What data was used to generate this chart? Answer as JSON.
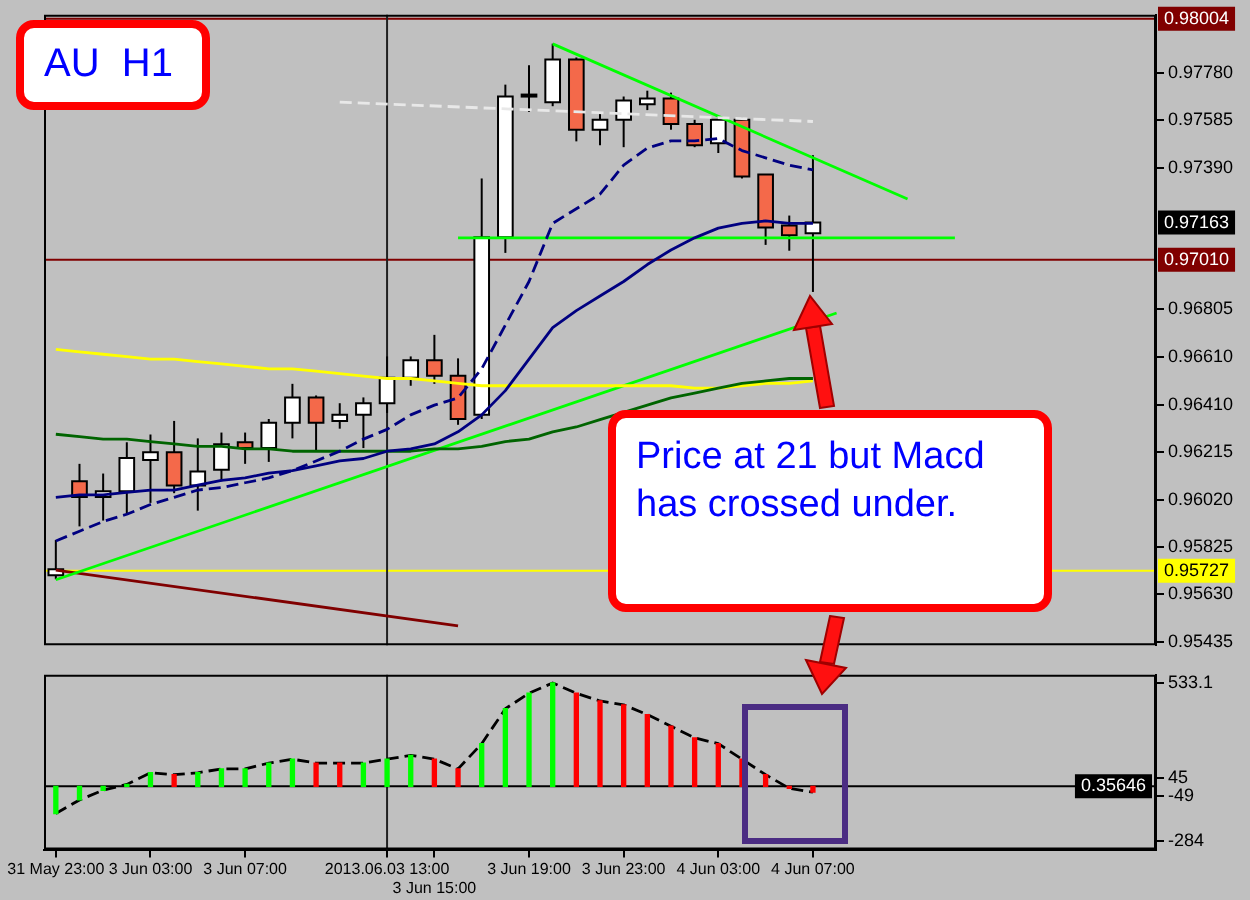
{
  "chart_data": [
    {
      "type": "candlestick",
      "categories": [
        "31 May 23:00",
        null,
        null,
        null,
        "3 Jun 03:00",
        null,
        null,
        null,
        "3 Jun 07:00",
        null,
        null,
        null,
        null,
        null,
        "2013.06.03 13:00",
        null,
        "3 Jun 15:00",
        null,
        null,
        null,
        "3 Jun 19:00",
        null,
        null,
        null,
        "3 Jun 23:00",
        null,
        null,
        null,
        "4 Jun 03:00",
        null,
        null,
        null,
        "4 Jun 07:00",
        null,
        null,
        null,
        null,
        null,
        null,
        null,
        null,
        null,
        null,
        null,
        null,
        null,
        null
      ],
      "ohlc": [
        [
          0.95709,
          0.95854,
          0.95692,
          0.95733
        ],
        [
          0.96096,
          0.96168,
          0.9591,
          0.96031
        ],
        [
          0.96031,
          0.96128,
          0.95934,
          0.96055
        ],
        [
          0.96055,
          0.96257,
          0.95958,
          0.96192
        ],
        [
          0.96184,
          0.96289,
          0.96007,
          0.96216
        ],
        [
          0.96216,
          0.96345,
          0.96047,
          0.96079
        ],
        [
          0.96079,
          0.96273,
          0.95975,
          0.96136
        ],
        [
          0.96144,
          0.96297,
          0.96096,
          0.96249
        ],
        [
          0.96257,
          0.96297,
          0.96168,
          0.96233
        ],
        [
          0.96233,
          0.96353,
          0.96176,
          0.96337
        ],
        [
          0.96337,
          0.96498,
          0.96273,
          0.96442
        ],
        [
          0.96442,
          0.9645,
          0.96224,
          0.96337
        ],
        [
          0.96345,
          0.96418,
          0.96313,
          0.9637
        ],
        [
          0.9637,
          0.96442,
          0.96233,
          0.96418
        ],
        [
          0.96418,
          0.96611,
          0.96378,
          0.96523
        ],
        [
          0.96523,
          0.96611,
          0.9649,
          0.96595
        ],
        [
          0.96595,
          0.967,
          0.96498,
          0.96531
        ],
        [
          0.96531,
          0.96603,
          0.96329,
          0.96353
        ],
        [
          0.9637,
          0.97345,
          0.96353,
          0.97103
        ],
        [
          0.97103,
          0.97732,
          0.97038,
          0.97683
        ],
        [
          0.97683,
          0.97812,
          0.97619,
          0.97691
        ],
        [
          0.97659,
          0.97901,
          0.97643,
          0.97836
        ],
        [
          0.97836,
          0.97844,
          0.97498,
          0.97546
        ],
        [
          0.97546,
          0.97611,
          0.97482,
          0.97587
        ],
        [
          0.97587,
          0.97683,
          0.97474,
          0.97667
        ],
        [
          0.97651,
          0.97707,
          0.97627,
          0.97675
        ],
        [
          0.97675,
          0.97699,
          0.97546,
          0.9757
        ],
        [
          0.9757,
          0.97587,
          0.97474,
          0.97482
        ],
        [
          0.9749,
          0.97595,
          0.9745,
          0.97587
        ],
        [
          0.97587,
          0.97595,
          0.97345,
          0.97353
        ],
        [
          0.97361,
          0.97361,
          0.97071,
          0.97143
        ],
        [
          0.97151,
          0.97192,
          0.97047,
          0.97111
        ],
        [
          0.97119,
          0.97441,
          0.96877,
          0.97163
        ],
        null,
        null,
        null,
        null,
        null,
        null,
        null,
        null,
        null,
        null,
        null,
        null,
        null,
        null
      ],
      "colors": [
        "#ffffff",
        "#f4694a",
        "#ffffff",
        "#ffffff",
        "#ffffff",
        "#f4694a",
        "#ffffff",
        "#ffffff",
        "#f4694a",
        "#ffffff",
        "#ffffff",
        "#f4694a",
        "#ffffff",
        "#ffffff",
        "#ffffff",
        "#ffffff",
        "#f4694a",
        "#f4694a",
        "#ffffff",
        "#ffffff",
        "#ffffff",
        "#ffffff",
        "#f4694a",
        "#ffffff",
        "#ffffff",
        "#ffffff",
        "#f4694a",
        "#f4694a",
        "#ffffff",
        "#f4694a",
        "#f4694a",
        "#f4694a",
        "#ffffff",
        null,
        null,
        null,
        null,
        null,
        null,
        null,
        null,
        null,
        null,
        null,
        null,
        null,
        null
      ],
      "series": [
        {
          "type": "line",
          "color": "#000080",
          "values": [
            0.9603,
            0.9604,
            0.9604,
            0.9605,
            0.9606,
            0.9606,
            0.9608,
            0.961,
            0.9611,
            0.9613,
            0.9614,
            0.9616,
            0.9618,
            0.9619,
            0.9622,
            0.9623,
            0.9625,
            0.963,
            0.9637,
            0.9647,
            0.966,
            0.9673,
            0.968,
            0.9686,
            0.9692,
            0.9699,
            0.9705,
            0.971,
            0.9714,
            0.9716,
            0.9717,
            0.9716,
            0.9716,
            null,
            null,
            null,
            null,
            null,
            null,
            null,
            null,
            null,
            null,
            null,
            null,
            null,
            null
          ]
        },
        {
          "type": "line",
          "color": "#000080",
          "line_style": "dashed",
          "values": [
            0.9585,
            0.9589,
            0.9593,
            0.9596,
            0.96,
            0.9603,
            0.9606,
            0.9607,
            0.9609,
            0.9611,
            0.9614,
            0.9618,
            0.9622,
            0.9627,
            0.9631,
            0.9637,
            0.9641,
            0.9644,
            0.9656,
            0.9674,
            0.9692,
            0.9716,
            0.9722,
            0.9728,
            0.974,
            0.9747,
            0.975,
            0.975,
            0.9751,
            0.9746,
            0.9743,
            0.974,
            0.9738,
            null,
            null,
            null,
            null,
            null,
            null,
            null,
            null,
            null,
            null,
            null,
            null,
            null,
            null
          ]
        },
        {
          "type": "line",
          "color": "#006400",
          "values": [
            0.9629,
            0.9628,
            0.9627,
            0.9627,
            0.9626,
            0.9625,
            0.9624,
            0.9624,
            0.9623,
            0.9623,
            0.9622,
            0.9622,
            0.9622,
            0.9622,
            0.9622,
            0.9622,
            0.9623,
            0.9623,
            0.9624,
            0.9626,
            0.9627,
            0.963,
            0.9632,
            0.9635,
            0.9638,
            0.9641,
            0.9644,
            0.9646,
            0.9648,
            0.965,
            0.9651,
            0.9652,
            0.9652,
            null,
            null,
            null,
            null,
            null,
            null,
            null,
            null,
            null,
            null,
            null,
            null,
            null,
            null
          ]
        },
        {
          "type": "line",
          "color": "#ffff00",
          "values": [
            0.9664,
            0.9663,
            0.9662,
            0.9661,
            0.966,
            0.966,
            0.9659,
            0.9658,
            0.9657,
            0.9656,
            0.9656,
            0.9655,
            0.9654,
            0.9653,
            0.9652,
            0.9652,
            0.9651,
            0.965,
            0.9649,
            0.9649,
            0.9649,
            0.9649,
            0.9649,
            0.9649,
            0.9649,
            0.9649,
            0.9649,
            0.9648,
            0.9648,
            0.9649,
            0.965,
            0.965,
            0.9651,
            null,
            null,
            null,
            null,
            null,
            null,
            null,
            null,
            null,
            null,
            null,
            null,
            null,
            null
          ]
        },
        {
          "type": "line",
          "color": "#e8e8e8",
          "line_style": "dashed",
          "values": [
            null,
            null,
            null,
            null,
            null,
            null,
            null,
            null,
            null,
            null,
            null,
            null,
            0.9766,
            null,
            null,
            null,
            null,
            null,
            null,
            null,
            null,
            null,
            null,
            null,
            null,
            null,
            null,
            null,
            null,
            null,
            null,
            null,
            0.9758,
            null,
            null,
            null,
            null,
            null,
            null,
            null,
            null,
            null,
            null,
            null,
            null,
            null,
            null
          ]
        },
        {
          "type": "line",
          "color": "#00ff00",
          "values": [
            0.9569,
            null,
            null,
            null,
            null,
            null,
            null,
            null,
            null,
            null,
            null,
            null,
            null,
            null,
            null,
            null,
            null,
            null,
            null,
            null,
            null,
            null,
            null,
            null,
            null,
            null,
            null,
            null,
            null,
            null,
            null,
            null,
            null,
            0.9679,
            null,
            null,
            null,
            null,
            null,
            null,
            null,
            null,
            null,
            null,
            null,
            null,
            null
          ]
        },
        {
          "type": "line",
          "color": "#00ff00",
          "values": [
            null,
            null,
            null,
            null,
            null,
            null,
            null,
            null,
            null,
            null,
            null,
            null,
            null,
            null,
            null,
            null,
            null,
            null,
            null,
            null,
            null,
            0.979,
            null,
            null,
            null,
            null,
            null,
            null,
            null,
            null,
            null,
            null,
            null,
            null,
            null,
            null,
            0.9726,
            null,
            null,
            null,
            null,
            null,
            null,
            null,
            null,
            null,
            null
          ]
        },
        {
          "type": "line",
          "color": "#00ff00",
          "values": [
            null,
            null,
            null,
            null,
            null,
            null,
            null,
            null,
            null,
            null,
            null,
            null,
            null,
            null,
            null,
            null,
            null,
            0.971,
            null,
            null,
            null,
            null,
            null,
            null,
            null,
            null,
            null,
            null,
            null,
            null,
            null,
            null,
            null,
            null,
            null,
            null,
            null,
            null,
            0.971,
            null,
            null,
            null,
            null,
            null,
            null,
            null,
            null
          ]
        },
        {
          "type": "line",
          "color": "#800000",
          "values": [
            0.9573,
            null,
            null,
            null,
            null,
            null,
            null,
            null,
            null,
            null,
            null,
            null,
            null,
            null,
            null,
            null,
            null,
            0.955,
            null,
            null,
            null,
            null,
            null,
            null,
            null,
            null,
            null,
            null,
            null,
            null,
            null,
            null,
            null,
            null,
            null,
            null,
            null,
            null,
            null,
            null,
            null,
            null,
            null,
            null,
            null,
            null,
            null
          ]
        }
      ],
      "ylim": [
        0.9542,
        0.9802
      ],
      "yticks": [
        {
          "value": 0.95435,
          "label": "0.95435"
        },
        {
          "value": 0.9563,
          "label": "0.95630"
        },
        {
          "value": 0.95825,
          "label": "0.95825"
        },
        {
          "value": 0.9602,
          "label": "0.96020"
        },
        {
          "value": 0.96215,
          "label": "0.96215"
        },
        {
          "value": 0.9641,
          "label": "0.96410"
        },
        {
          "value": 0.9661,
          "label": "0.96610"
        },
        {
          "value": 0.96805,
          "label": "0.96805"
        },
        {
          "value": 0.9739,
          "label": "0.97390"
        },
        {
          "value": 0.97585,
          "label": "0.97585"
        },
        {
          "value": 0.9778,
          "label": "0.97780"
        }
      ],
      "tick_labels": "y",
      "ref_lines": [
        {
          "axis": "y",
          "value": 0.98004,
          "label": "0.98004",
          "color": "#800000"
        },
        {
          "axis": "y",
          "value": 0.9701,
          "label": "0.97010",
          "color": "#800000"
        },
        {
          "axis": "y",
          "value": 0.95727,
          "label": "0.95727",
          "color": "#ffff00"
        },
        {
          "axis": "x",
          "value": "2013.06.03 13:00",
          "color": "#202020"
        }
      ],
      "annotations": [
        "AU  H1",
        "Price at 21 but Macd has crossed under.",
        "0.97163"
      ]
    },
    {
      "type": "bar",
      "categories": [
        "31 May 23:00",
        null,
        null,
        null,
        "3 Jun 03:00",
        null,
        null,
        null,
        "3 Jun 07:00",
        null,
        null,
        null,
        null,
        null,
        "2013.06.03 13:00",
        null,
        "3 Jun 15:00",
        null,
        null,
        null,
        "3 Jun 19:00",
        null,
        null,
        null,
        "3 Jun 23:00",
        null,
        null,
        null,
        "4 Jun 03:00",
        null,
        null,
        null,
        "4 Jun 07:00",
        null,
        null,
        null,
        null,
        null,
        null,
        null,
        null,
        null,
        null,
        null,
        null,
        null,
        null
      ],
      "series": [
        {
          "colors": [
            "#00ff00",
            "#00ff00",
            "#00ff00",
            "#00ff00",
            "#00ff00",
            "#ff0000",
            "#00ff00",
            "#00ff00",
            "#00ff00",
            "#00ff00",
            "#00ff00",
            "#ff0000",
            "#ff0000",
            "#00ff00",
            "#00ff00",
            "#00ff00",
            "#ff0000",
            "#ff0000",
            "#00ff00",
            "#00ff00",
            "#00ff00",
            "#00ff00",
            "#ff0000",
            "#ff0000",
            "#ff0000",
            "#ff0000",
            "#ff0000",
            "#ff0000",
            "#ff0000",
            "#ff0000",
            "#ff0000",
            "#ff0000",
            "#ff0000",
            null,
            null,
            null,
            null,
            null,
            null,
            null,
            null,
            null,
            null,
            null,
            null,
            null,
            null
          ],
          "values": [
            -140,
            -70,
            -20,
            10,
            70,
            60,
            70,
            90,
            90,
            120,
            140,
            120,
            120,
            120,
            140,
            160,
            140,
            90,
            220,
            400,
            480,
            533.1,
            480,
            440,
            420,
            370,
            310,
            250,
            220,
            140,
            60,
            -10,
            -30,
            null,
            null,
            null,
            null,
            null,
            null,
            null,
            null,
            null,
            null,
            null,
            null,
            null,
            null
          ]
        },
        {
          "type": "line",
          "color": "#000000",
          "line_style": "dashed",
          "values": [
            -140,
            -70,
            -20,
            10,
            70,
            60,
            70,
            90,
            90,
            120,
            140,
            120,
            120,
            120,
            140,
            160,
            140,
            90,
            220,
            400,
            480,
            533.1,
            480,
            440,
            420,
            370,
            310,
            250,
            220,
            140,
            60,
            -10,
            -30,
            null,
            null,
            null,
            null,
            null,
            null,
            null,
            null,
            null,
            null,
            null,
            null,
            null,
            null
          ]
        }
      ],
      "ylim": [
        -326,
        575
      ],
      "yticks": [
        533.1,
        45,
        -49,
        -284
      ],
      "ref_lines": [
        {
          "axis": "y",
          "value": 0,
          "color": "#000000"
        },
        {
          "axis": "x",
          "value": "2013.06.03 13:00",
          "color": "#202020"
        }
      ],
      "annotations": [
        "0.35646"
      ]
    }
  ]
}
